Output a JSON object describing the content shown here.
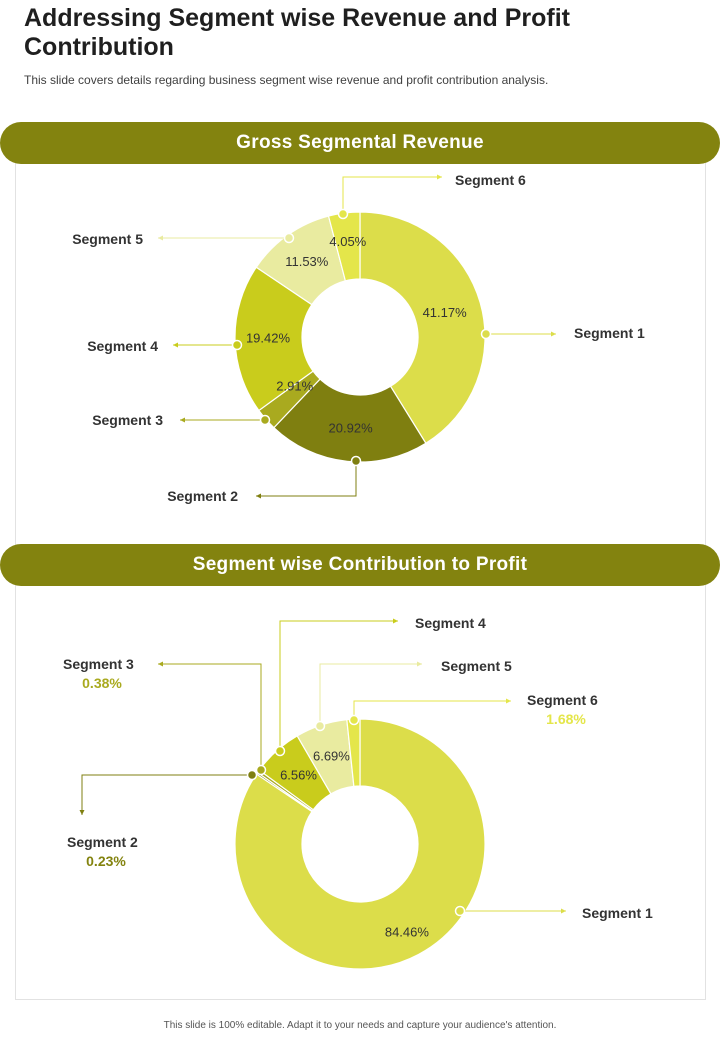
{
  "title": "Addressing Segment wise Revenue and Profit Contribution",
  "subtitle": "This slide covers details regarding business segment wise revenue  and profit contribution analysis.",
  "footer": "This slide is 100% editable. Adapt it to your needs and capture your audience's attention.",
  "colors": {
    "banner": "#83830f",
    "segment_1": "#dcdd4a",
    "segment_2": "#7f7f10",
    "segment_3": "#a9aa1f",
    "segment_4": "#c9cc1c",
    "segment_5": "#e9eba0",
    "segment_6": "#e4e64a"
  },
  "chart_data": [
    {
      "type": "pie",
      "variant": "donut",
      "title": "Gross Segmental Revenue",
      "categories": [
        "Segment 1",
        "Segment 2",
        "Segment 3",
        "Segment 4",
        "Segment 5",
        "Segment 6"
      ],
      "values": [
        41.17,
        20.92,
        2.91,
        19.42,
        11.53,
        4.05
      ],
      "labels": [
        "41.17%",
        "20.92%",
        "2.91%",
        "19.42%",
        "11.53%",
        "4.05%"
      ],
      "legend": "callouts"
    },
    {
      "type": "pie",
      "variant": "donut",
      "title": "Segment wise Contribution to Profit",
      "categories": [
        "Segment 1",
        "Segment 2",
        "Segment 3",
        "Segment 4",
        "Segment 5",
        "Segment 6"
      ],
      "values": [
        84.46,
        0.23,
        0.38,
        6.56,
        6.69,
        1.68
      ],
      "inner_labels": [
        "84.46%",
        "",
        "",
        "6.56%",
        "6.69%",
        ""
      ],
      "callout_values": [
        "",
        "0.23%",
        "0.38%",
        "",
        "",
        "1.68%"
      ],
      "legend": "callouts"
    }
  ]
}
